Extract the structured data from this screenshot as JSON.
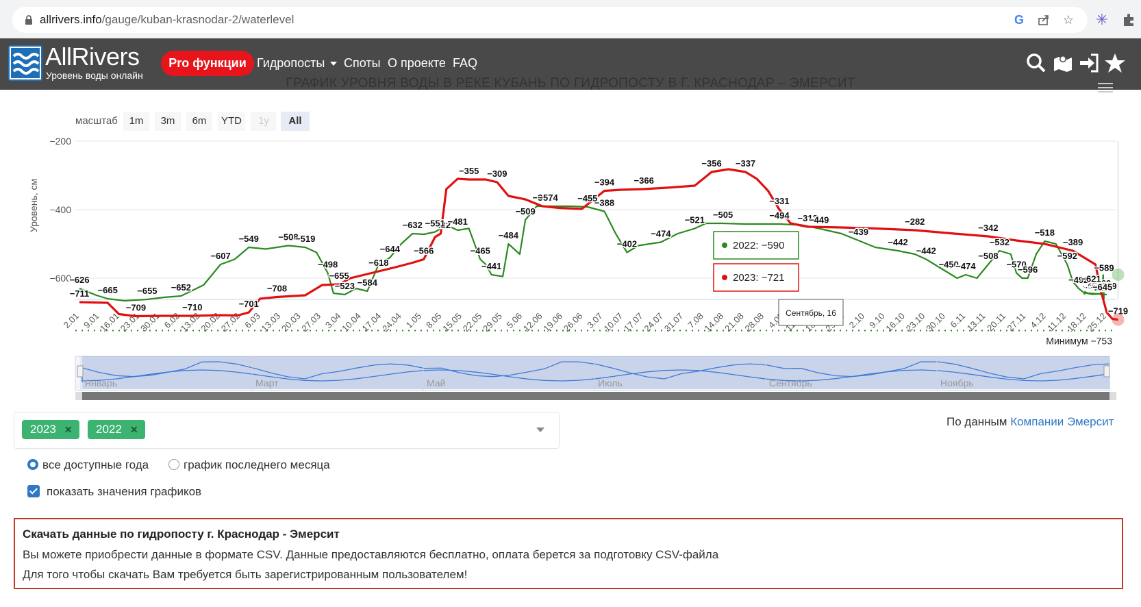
{
  "browser": {
    "url_host": "allrivers.info",
    "url_path": "/gauge/kuban-krasnodar-2/waterlevel",
    "icons": [
      "lock-icon",
      "google-icon",
      "share-icon",
      "star-icon",
      "extension-icon",
      "puzzle-icon"
    ]
  },
  "nav": {
    "logo_title": "AllRivers",
    "logo_sub": "Уровень воды онлайн",
    "pro_label": "Pro функции",
    "links": [
      "Гидропосты",
      "Споты",
      "О проекте",
      "FAQ"
    ],
    "icons": [
      "search-icon",
      "map-icon",
      "login-icon",
      "star-icon"
    ]
  },
  "page_title": "ГРАФИК УРОВНЯ ВОДЫ В РЕКЕ КУБАНЬ ПО ГИДРОПОСТУ В Г. КРАСНОДАР – ЭМЕРСИТ",
  "zoom": {
    "label": "масштаб",
    "buttons": [
      "1m",
      "3m",
      "6m",
      "YTD",
      "1y",
      "All"
    ],
    "active": "All",
    "disabled": "1y"
  },
  "chart_data": {
    "type": "line",
    "title": "",
    "ylabel": "Уровень, см",
    "ylim": [
      -780,
      -200
    ],
    "yticks": [
      -200,
      -400,
      -600
    ],
    "xlim": [
      0,
      364
    ],
    "x_tick_labels": [
      "2.01",
      "9.01",
      "16.01",
      "23.01",
      "30.01",
      "6.02",
      "13.02",
      "20.02",
      "27.02",
      "6.03",
      "13.03",
      "20.03",
      "27.03",
      "3.04",
      "10.04",
      "17.04",
      "24.04",
      "1.05",
      "8.05",
      "15.05",
      "22.05",
      "29.05",
      "5.06",
      "12.06",
      "19.06",
      "26.06",
      "3.07",
      "10.07",
      "17.07",
      "24.07",
      "31.07",
      "7.08",
      "14.08",
      "21.08",
      "28.08",
      "4.09",
      "11.09",
      "18.09",
      "25.09",
      "2.10",
      "9.10",
      "16.10",
      "23.10",
      "30.10",
      "6.11",
      "13.11",
      "20.11",
      "27.11",
      "4.12",
      "11.12",
      "18.12",
      "25.12"
    ],
    "colors": {
      "2022": "#2a8a1f",
      "2023": "#e01010",
      "minimum": "#2a8a1f"
    },
    "minimum": {
      "label": "Минимум -753",
      "value": -753
    },
    "series": [
      {
        "name": "2022",
        "points": [
          [
            0,
            -630
          ],
          [
            6,
            -650
          ],
          [
            10,
            -660
          ],
          [
            16,
            -666
          ],
          [
            24,
            -662
          ],
          [
            30,
            -656
          ],
          [
            36,
            -652
          ],
          [
            44,
            -620
          ],
          [
            50,
            -560
          ],
          [
            55,
            -545
          ],
          [
            60,
            -510
          ],
          [
            66,
            -515
          ],
          [
            74,
            -505
          ],
          [
            80,
            -510
          ],
          [
            84,
            -525
          ],
          [
            88,
            -585
          ],
          [
            90,
            -644
          ],
          [
            94,
            -648
          ],
          [
            98,
            -630
          ],
          [
            102,
            -638
          ],
          [
            106,
            -560
          ],
          [
            110,
            -540
          ],
          [
            114,
            -500
          ],
          [
            118,
            -470
          ],
          [
            122,
            -472
          ],
          [
            126,
            -465
          ],
          [
            130,
            -445
          ],
          [
            134,
            -460
          ],
          [
            138,
            -455
          ],
          [
            142,
            -545
          ],
          [
            144,
            -560
          ],
          [
            146,
            -590
          ],
          [
            150,
            -595
          ],
          [
            152,
            -500
          ],
          [
            156,
            -530
          ],
          [
            158,
            -430
          ],
          [
            162,
            -390
          ],
          [
            166,
            -390
          ],
          [
            174,
            -390
          ],
          [
            180,
            -392
          ],
          [
            186,
            -405
          ],
          [
            190,
            -470
          ],
          [
            194,
            -525
          ],
          [
            198,
            -505
          ],
          [
            206,
            -495
          ],
          [
            212,
            -470
          ],
          [
            218,
            -455
          ],
          [
            222,
            -440
          ],
          [
            228,
            -440
          ],
          [
            236,
            -442
          ],
          [
            248,
            -442
          ],
          [
            256,
            -445
          ],
          [
            262,
            -455
          ],
          [
            270,
            -470
          ],
          [
            276,
            -490
          ],
          [
            282,
            -510
          ],
          [
            290,
            -520
          ],
          [
            296,
            -530
          ],
          [
            300,
            -545
          ],
          [
            304,
            -565
          ],
          [
            308,
            -585
          ],
          [
            311,
            -600
          ],
          [
            314,
            -590
          ],
          [
            318,
            -600
          ],
          [
            322,
            -560
          ],
          [
            326,
            -520
          ],
          [
            330,
            -530
          ],
          [
            332,
            -585
          ],
          [
            334,
            -600
          ],
          [
            336,
            -600
          ],
          [
            339,
            -530
          ],
          [
            342,
            -492
          ],
          [
            346,
            -500
          ],
          [
            350,
            -560
          ],
          [
            352,
            -610
          ],
          [
            354,
            -630
          ],
          [
            356,
            -643
          ],
          [
            364,
            -648
          ]
        ],
        "points_tail": [
          [
            364,
            -648
          ],
          [
            370,
            -640
          ],
          [
            390,
            -645
          ],
          [
            420,
            -647
          ],
          [
            460,
            -646
          ],
          [
            480,
            -645
          ],
          [
            490,
            -640
          ],
          [
            494,
            -589
          ],
          [
            498,
            -640
          ],
          [
            500,
            -660
          ]
        ]
      },
      {
        "name": "2023",
        "points": [
          [
            0,
            -670
          ],
          [
            10,
            -672
          ],
          [
            14,
            -705
          ],
          [
            20,
            -711
          ],
          [
            30,
            -710
          ],
          [
            40,
            -710
          ],
          [
            50,
            -708
          ],
          [
            56,
            -709
          ],
          [
            60,
            -700
          ],
          [
            64,
            -660
          ],
          [
            70,
            -655
          ],
          [
            80,
            -650
          ],
          [
            86,
            -620
          ],
          [
            92,
            -618
          ],
          [
            96,
            -600
          ],
          [
            106,
            -580
          ],
          [
            112,
            -568
          ],
          [
            118,
            -555
          ],
          [
            122,
            -545
          ],
          [
            126,
            -480
          ],
          [
            128,
            -470
          ],
          [
            130,
            -340
          ],
          [
            134,
            -310
          ],
          [
            138,
            -312
          ],
          [
            144,
            -312
          ],
          [
            148,
            -320
          ],
          [
            152,
            -360
          ],
          [
            158,
            -370
          ],
          [
            164,
            -390
          ],
          [
            170,
            -395
          ],
          [
            178,
            -398
          ],
          [
            186,
            -345
          ],
          [
            192,
            -342
          ],
          [
            200,
            -340
          ],
          [
            210,
            -335
          ],
          [
            218,
            -330
          ],
          [
            224,
            -290
          ],
          [
            230,
            -282
          ],
          [
            236,
            -290
          ],
          [
            240,
            -310
          ],
          [
            244,
            -345
          ],
          [
            248,
            -400
          ],
          [
            252,
            -440
          ],
          [
            258,
            -450
          ],
          [
            270,
            -452
          ],
          [
            282,
            -455
          ],
          [
            296,
            -460
          ],
          [
            310,
            -470
          ],
          [
            322,
            -478
          ],
          [
            332,
            -490
          ],
          [
            342,
            -500
          ],
          [
            352,
            -520
          ],
          [
            360,
            -560
          ],
          [
            362,
            -640
          ],
          [
            364,
            -700
          ],
          [
            366,
            -719
          ],
          [
            368,
            -721
          ]
        ]
      }
    ],
    "point_labels_2022": [
      "-626",
      "-665",
      "-655",
      "-652",
      "-607",
      "-549",
      "-508",
      "-519",
      "-498",
      "-523",
      "-584",
      "-644",
      "-632",
      "-551",
      "-481",
      "-465",
      "-441",
      "-484",
      "-509",
      "-574",
      "-455",
      "-388",
      "-402",
      "-474",
      "-521",
      "-505",
      "-494",
      "-449",
      "-439",
      "-442",
      "-442",
      "-450",
      "-474",
      "-508",
      "-532",
      "-570",
      "-596",
      "-518",
      "-592",
      "-492",
      "-559",
      "-621",
      "-643",
      "-646",
      "-646",
      "-647",
      "-648",
      "-646",
      "-645",
      "-589"
    ],
    "point_labels_2023": [
      "-711",
      "-709",
      "-710",
      "-701",
      "-708",
      "-655",
      "-618",
      "-566",
      "-422",
      "-355",
      "-309",
      "-311",
      "-394",
      "-366",
      "-356",
      "-337",
      "-331",
      "-313",
      "-282",
      "-342",
      "-389",
      "-569",
      "-719"
    ],
    "tooltip": {
      "date": "Сентябрь, 16",
      "lines": [
        {
          "year": "2022",
          "value": "-590"
        },
        {
          "year": "2023",
          "value": "-721"
        }
      ]
    },
    "navigator_labels": [
      "Январь",
      "Март",
      "Май",
      "Июль",
      "Сентябрь",
      "Ноябрь"
    ],
    "grid": true
  },
  "controls": {
    "tags": [
      "2023",
      "2022"
    ],
    "source_prefix": "По данным",
    "source_link": "Компании Эмерсит",
    "radio_all": "все доступные года",
    "radio_month": "график последнего месяца",
    "checkbox_label": "показать значения графиков"
  },
  "download": {
    "title": "Скачать данные по гидропосту г. Краснодар - Эмерсит",
    "line1": "Вы можете приобрести данные в формате CSV. Данные предоставляются бесплатно, оплата берется за подготовку CSV-файла",
    "line2": "Для того чтобы скачать Вам требуется быть зарегистрированным пользователем!"
  }
}
